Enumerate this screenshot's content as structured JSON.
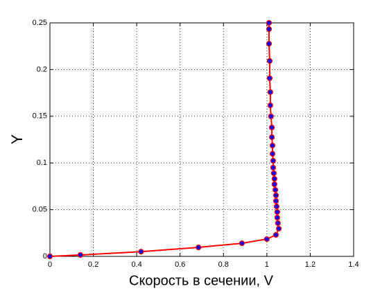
{
  "chart_data": {
    "type": "line",
    "xlabel": "Скорость в сечении, V",
    "ylabel": "Y",
    "x": [
      0,
      0.14,
      0.42,
      0.685,
      0.885,
      1.0,
      1.042,
      1.055,
      1.051,
      1.048,
      1.048,
      1.045,
      1.042,
      1.042,
      1.039,
      1.035,
      1.035,
      1.032,
      1.029,
      1.029,
      1.026,
      1.026,
      1.023,
      1.023,
      1.019,
      1.016,
      1.016,
      1.013,
      1.013,
      1.01,
      1.01,
      1.01
    ],
    "series": [
      {
        "color": "#ff0000",
        "marker_color": "#0000ff",
        "values": [
          0,
          0.0015,
          0.005,
          0.0096,
          0.014,
          0.0185,
          0.023,
          0.0297,
          0.0356,
          0.0415,
          0.0475,
          0.0534,
          0.0593,
          0.0653,
          0.0712,
          0.0772,
          0.0831,
          0.089,
          0.095,
          0.1024,
          0.1098,
          0.1187,
          0.1276,
          0.138,
          0.1499,
          0.1617,
          0.1758,
          0.1907,
          0.2092,
          0.2277,
          0.2433,
          0.25
        ]
      }
    ],
    "xlim": [
      0,
      1.4
    ],
    "xticks": [
      0,
      0.2,
      0.4,
      0.6,
      0.8,
      1,
      1.2,
      1.4
    ],
    "ylim": [
      0,
      0.25
    ],
    "yticks": [
      0,
      0.05,
      0.1,
      0.15,
      0.2,
      0.25
    ],
    "grid": true
  }
}
